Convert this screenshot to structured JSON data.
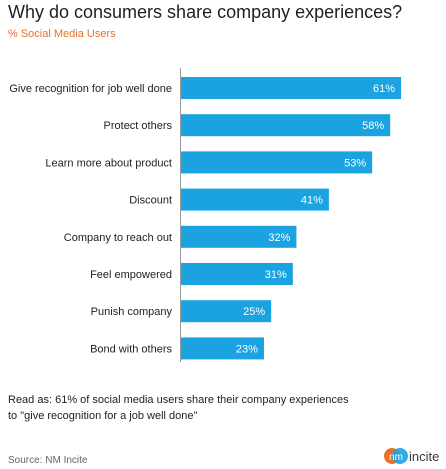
{
  "chart_data": {
    "type": "bar",
    "orientation": "horizontal",
    "title": "Why do consumers share company experiences?",
    "subtitle": "% Social Media Users",
    "categories": [
      "Give recognition for job well done",
      "Protect others",
      "Learn more about product",
      "Discount",
      "Company to reach out",
      "Feel empowered",
      "Punish company",
      "Bond with others"
    ],
    "values": [
      61,
      58,
      53,
      41,
      32,
      31,
      25,
      23
    ],
    "value_labels": [
      "61%",
      "58%",
      "53%",
      "41%",
      "32%",
      "31%",
      "25%",
      "23%"
    ],
    "bar_color": "#1aa3e0",
    "grid": false,
    "legend": "none"
  },
  "note": {
    "line1": "Read as: 61% of social media users share their company experiences",
    "line2": "to \"give recognition for a job well done\""
  },
  "source": "Source: NM Incite",
  "logo": {
    "text": "incite",
    "mark": "nm",
    "colors": {
      "blue": "#1aa3e0",
      "orange": "#e8702a"
    }
  }
}
